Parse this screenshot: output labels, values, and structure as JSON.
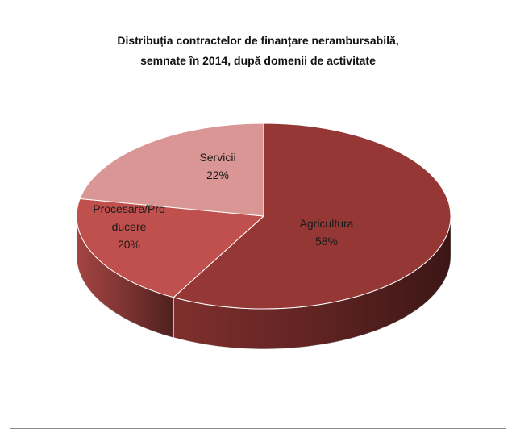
{
  "chart_data": {
    "type": "pie3d",
    "title": "Distribuția contractelor de finanțare nerambursabilă, semnate în 2014,  după domenii de activitate",
    "categories": [
      "Agricultura",
      "Procesare/Producere",
      "Servicii"
    ],
    "values": [
      58,
      20,
      22
    ],
    "value_labels": [
      "58%",
      "20%",
      "22%"
    ],
    "colors": [
      "#953735",
      "#c0504d",
      "#d99694"
    ]
  }
}
